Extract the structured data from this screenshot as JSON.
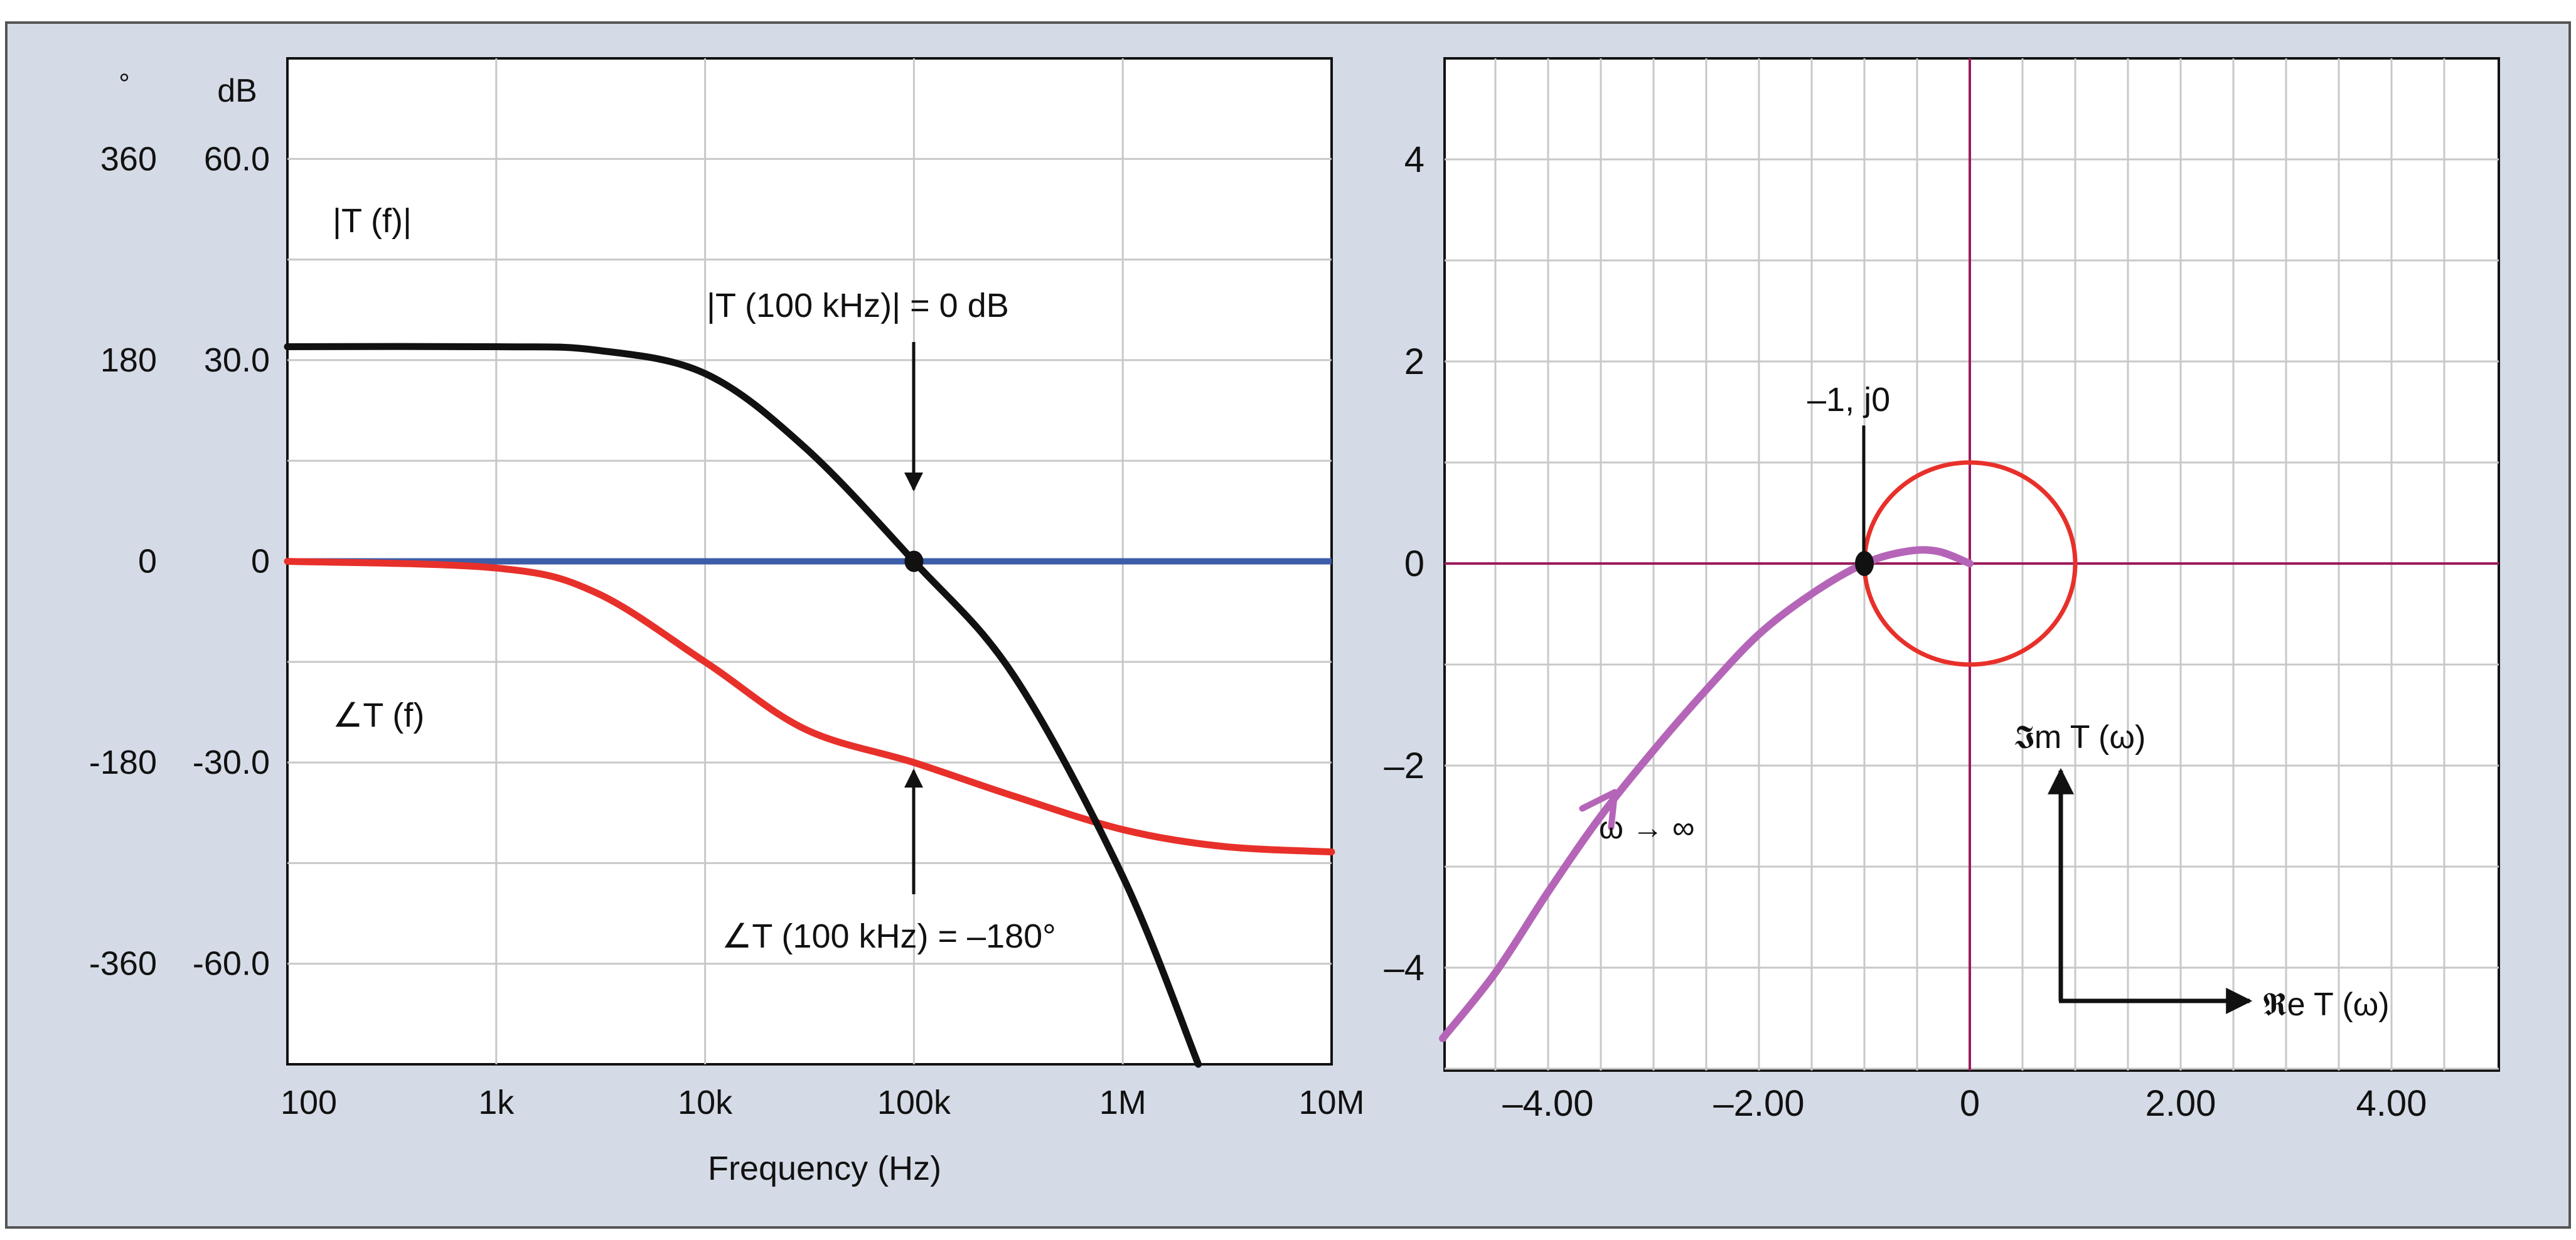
{
  "colors": {
    "frame_bg": "#d5dbe6",
    "plot_bg": "#ffffff",
    "grid": "#c8c8c8",
    "magnitude": "#111111",
    "phase": "#e8302a",
    "zero_db_line": "#3c5ea8",
    "nyquist": "#b565b8",
    "unit_circle": "#e8302a",
    "axes_cross": "#9b1c5c"
  },
  "chart_data": [
    {
      "type": "line",
      "name": "bode",
      "xlabel": "Frequency (Hz)",
      "x_scale": "log",
      "xlim": [
        100,
        10000000
      ],
      "x_tick_labels": [
        "100",
        "1k",
        "10k",
        "100k",
        "1M",
        "10M"
      ],
      "x_tick_values": [
        100,
        1000,
        10000,
        100000,
        1000000,
        10000000
      ],
      "y_unit_magnitude": "dB",
      "y_unit_phase": "°",
      "ylim_magnitude": [
        -75,
        75
      ],
      "ylim_phase": [
        -450,
        450
      ],
      "y_ticks_magnitude": [
        "60.0",
        "30.0",
        "0",
        "-30.0",
        "-60.0"
      ],
      "y_ticks_magnitude_values": [
        60,
        30,
        0,
        -30,
        -60
      ],
      "y_ticks_phase": [
        "360",
        "180",
        "0",
        "-180",
        "-360"
      ],
      "grid": true,
      "series": [
        {
          "name": "|T (f)|",
          "unit": "dB",
          "x": [
            100,
            1000,
            3000,
            10000,
            30000,
            100000,
            300000,
            1000000,
            2300000
          ],
          "values": [
            32,
            32,
            31.5,
            28,
            17,
            0,
            -17,
            -47,
            -75
          ]
        },
        {
          "name": "∠T (f)",
          "unit": "°",
          "x": [
            100,
            1000,
            3000,
            10000,
            30000,
            100000,
            300000,
            1000000,
            3000000,
            10000000
          ],
          "values": [
            0,
            -6,
            -28,
            -90,
            -150,
            -180,
            -210,
            -240,
            -255,
            -260
          ]
        },
        {
          "name": "0 dB",
          "unit": "dB",
          "x": [
            100,
            10000000
          ],
          "values": [
            0,
            0
          ]
        }
      ],
      "markers": [
        {
          "x": 100000,
          "y": 0
        }
      ],
      "annotations": {
        "mag_at_crossover": "|T (100 kHz)| = 0 dB",
        "phase_at_crossover": "∠T (100 kHz) = –180°"
      }
    },
    {
      "type": "line",
      "name": "nyquist",
      "xlim": [
        -5,
        5
      ],
      "ylim": [
        -5,
        5
      ],
      "x_tick_values": [
        -4,
        -2,
        0,
        2,
        4
      ],
      "x_tick_labels": [
        "–4.00",
        "–2.00",
        "0",
        "2.00",
        "4.00"
      ],
      "y_tick_values": [
        4,
        2,
        0,
        -2,
        -4
      ],
      "y_tick_labels": [
        "4",
        "2",
        "0",
        "–2",
        "–4"
      ],
      "grid": true,
      "series": [
        {
          "name": "T(ω)",
          "x": [
            0,
            -0.3,
            -0.6,
            -1.0,
            -1.5,
            -2.0,
            -2.5,
            -3.0,
            -3.5,
            -4.0,
            -4.5,
            -5.0
          ],
          "values": [
            0,
            0.12,
            0.12,
            0.0,
            -0.3,
            -0.7,
            -1.25,
            -1.85,
            -2.5,
            -3.25,
            -4.05,
            -4.7
          ]
        }
      ],
      "unit_circle": {
        "center": [
          0,
          0
        ],
        "radius": 1
      },
      "critical_point": {
        "x": -1,
        "y": 0
      },
      "annotations": {
        "critical_point_label": "–1, j0",
        "omega_label": "ω → ∞",
        "imag_axis_label": "𝕴m T (ω)",
        "real_axis_label": "𝕽e T (ω)"
      }
    }
  ]
}
